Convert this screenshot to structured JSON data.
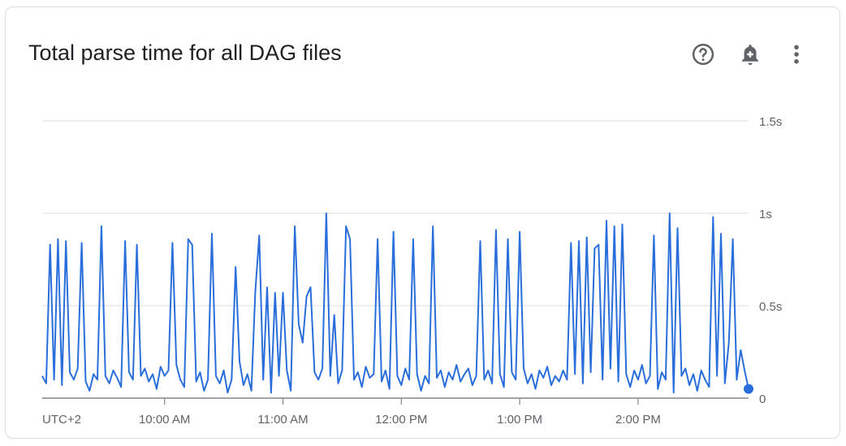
{
  "header": {
    "title": "Total parse time for all DAG files",
    "icons": [
      "help-circle-icon",
      "add-alert-bell-icon",
      "more-vert-icon"
    ]
  },
  "colors": {
    "series": "#2a6edb",
    "grid": "#e3e3e3",
    "axis": "#80868b",
    "text": "#5f6368"
  },
  "chart_data": {
    "type": "line",
    "title": "Total parse time for all DAG files",
    "xlabel": "",
    "ylabel": "",
    "timezone_label": "UTC+2",
    "x_ticks": [
      "10:00 AM",
      "11:00 AM",
      "12:00 PM",
      "1:00 PM",
      "2:00 PM"
    ],
    "y_ticks": [
      "0",
      "0.5s",
      "1s",
      "1.5s"
    ],
    "y_tick_values": [
      0,
      0.5,
      1,
      1.5
    ],
    "ylim": [
      0,
      1.5
    ],
    "xlim": [
      "08:58",
      "14:56"
    ],
    "grid": true,
    "y_axis_position": "right",
    "x": [
      "08:58",
      "09:00",
      "09:02",
      "09:04",
      "09:06",
      "09:08",
      "09:10",
      "09:12",
      "09:14",
      "09:16",
      "09:18",
      "09:20",
      "09:22",
      "09:24",
      "09:26",
      "09:28",
      "09:30",
      "09:32",
      "09:34",
      "09:36",
      "09:38",
      "09:40",
      "09:42",
      "09:44",
      "09:46",
      "09:48",
      "09:50",
      "09:52",
      "09:54",
      "09:56",
      "09:58",
      "10:00",
      "10:02",
      "10:04",
      "10:06",
      "10:08",
      "10:10",
      "10:12",
      "10:14",
      "10:16",
      "10:18",
      "10:20",
      "10:22",
      "10:24",
      "10:26",
      "10:28",
      "10:30",
      "10:32",
      "10:34",
      "10:36",
      "10:38",
      "10:40",
      "10:42",
      "10:44",
      "10:46",
      "10:48",
      "10:50",
      "10:52",
      "10:54",
      "10:56",
      "10:58",
      "11:00",
      "11:02",
      "11:04",
      "11:06",
      "11:08",
      "11:10",
      "11:12",
      "11:14",
      "11:16",
      "11:18",
      "11:20",
      "11:22",
      "11:24",
      "11:26",
      "11:28",
      "11:30",
      "11:32",
      "11:34",
      "11:36",
      "11:38",
      "11:40",
      "11:42",
      "11:44",
      "11:46",
      "11:48",
      "11:50",
      "11:52",
      "11:54",
      "11:56",
      "11:58",
      "12:00",
      "12:02",
      "12:04",
      "12:06",
      "12:08",
      "12:10",
      "12:12",
      "12:14",
      "12:16",
      "12:18",
      "12:20",
      "12:22",
      "12:24",
      "12:26",
      "12:28",
      "12:30",
      "12:32",
      "12:34",
      "12:36",
      "12:38",
      "12:40",
      "12:42",
      "12:44",
      "12:46",
      "12:48",
      "12:50",
      "12:52",
      "12:54",
      "12:56",
      "12:58",
      "13:00",
      "13:02",
      "13:04",
      "13:06",
      "13:08",
      "13:10",
      "13:12",
      "13:14",
      "13:16",
      "13:18",
      "13:20",
      "13:22",
      "13:24",
      "13:26",
      "13:28",
      "13:30",
      "13:32",
      "13:34",
      "13:36",
      "13:38",
      "13:40",
      "13:42",
      "13:44",
      "13:46",
      "13:48",
      "13:50",
      "13:52",
      "13:54",
      "13:56",
      "13:58",
      "14:00",
      "14:02",
      "14:04",
      "14:06",
      "14:08",
      "14:10",
      "14:12",
      "14:14",
      "14:16",
      "14:18",
      "14:20",
      "14:22",
      "14:24",
      "14:26",
      "14:28",
      "14:30",
      "14:32",
      "14:34",
      "14:36",
      "14:38",
      "14:40",
      "14:42",
      "14:44",
      "14:46",
      "14:48",
      "14:50",
      "14:52",
      "14:54",
      "14:56"
    ],
    "series": [
      {
        "values": [
          0.12,
          0.08,
          0.83,
          0.1,
          0.86,
          0.07,
          0.85,
          0.14,
          0.1,
          0.16,
          0.84,
          0.09,
          0.04,
          0.13,
          0.1,
          0.93,
          0.12,
          0.08,
          0.15,
          0.11,
          0.06,
          0.85,
          0.14,
          0.1,
          0.83,
          0.12,
          0.16,
          0.09,
          0.13,
          0.05,
          0.17,
          0.12,
          0.15,
          0.84,
          0.18,
          0.1,
          0.06,
          0.86,
          0.83,
          0.09,
          0.14,
          0.04,
          0.1,
          0.89,
          0.12,
          0.08,
          0.15,
          0.03,
          0.1,
          0.71,
          0.2,
          0.07,
          0.13,
          0.04,
          0.58,
          0.88,
          0.1,
          0.6,
          0.03,
          0.57,
          0.12,
          0.57,
          0.15,
          0.04,
          0.93,
          0.4,
          0.3,
          0.55,
          0.6,
          0.14,
          0.1,
          0.16,
          1.0,
          0.12,
          0.45,
          0.08,
          0.15,
          0.93,
          0.86,
          0.1,
          0.14,
          0.06,
          0.17,
          0.11,
          0.13,
          0.86,
          0.09,
          0.15,
          0.05,
          0.9,
          0.12,
          0.07,
          0.16,
          0.1,
          0.86,
          0.13,
          0.04,
          0.12,
          0.08,
          0.93,
          0.11,
          0.15,
          0.06,
          0.14,
          0.1,
          0.18,
          0.09,
          0.13,
          0.16,
          0.07,
          0.12,
          0.85,
          0.1,
          0.15,
          0.08,
          0.91,
          0.13,
          0.06,
          0.86,
          0.14,
          0.1,
          0.9,
          0.16,
          0.08,
          0.13,
          0.05,
          0.15,
          0.11,
          0.17,
          0.07,
          0.12,
          0.09,
          0.15,
          0.1,
          0.84,
          0.13,
          0.85,
          0.08,
          0.87,
          0.14,
          0.81,
          0.83,
          0.1,
          0.96,
          0.16,
          0.93,
          0.09,
          0.94,
          0.13,
          0.06,
          0.15,
          0.1,
          0.18,
          0.08,
          0.12,
          0.88,
          0.05,
          0.14,
          0.1,
          1.0,
          0.03,
          0.92,
          0.12,
          0.16,
          0.07,
          0.13,
          0.04,
          0.15,
          0.1,
          0.06,
          0.98,
          0.12,
          0.89,
          0.08,
          0.3,
          0.86,
          0.1,
          0.26,
          0.15,
          0.05
        ]
      }
    ]
  }
}
